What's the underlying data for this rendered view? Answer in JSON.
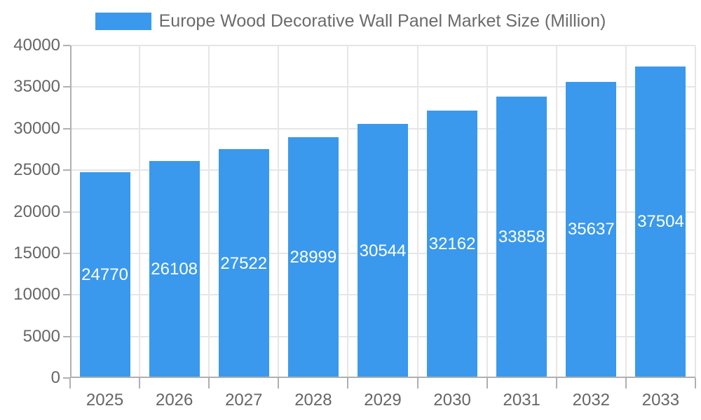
{
  "legend": {
    "label": "Europe Wood Decorative Wall Panel Market Size (Million)",
    "position": "top"
  },
  "colors": {
    "bar": "#3A99EC",
    "grid": "#E6E6E6",
    "axis": "#B0B0B0",
    "text": "#666666",
    "title_text": "#6B6B6B",
    "bar_label_text": "#FFFFFF",
    "background": "#FFFFFF"
  },
  "chart_data": {
    "type": "bar",
    "title": "Europe Wood Decorative Wall Panel Market Size (Million)",
    "categories": [
      "2025",
      "2026",
      "2027",
      "2028",
      "2029",
      "2030",
      "2031",
      "2032",
      "2033"
    ],
    "values": [
      24770,
      26108,
      27522,
      28999,
      30544,
      32162,
      33858,
      35637,
      37504
    ],
    "series": [
      {
        "name": "Europe Wood Decorative Wall Panel Market Size (Million)",
        "values": [
          24770,
          26108,
          27522,
          28999,
          30544,
          32162,
          33858,
          35637,
          37504
        ]
      }
    ],
    "xlabel": "",
    "ylabel": "",
    "ylim": [
      0,
      40000
    ],
    "yticks": [
      0,
      5000,
      10000,
      15000,
      20000,
      25000,
      30000,
      35000,
      40000
    ],
    "grid": true,
    "legend_position": "top",
    "bar_label_position": "center"
  }
}
